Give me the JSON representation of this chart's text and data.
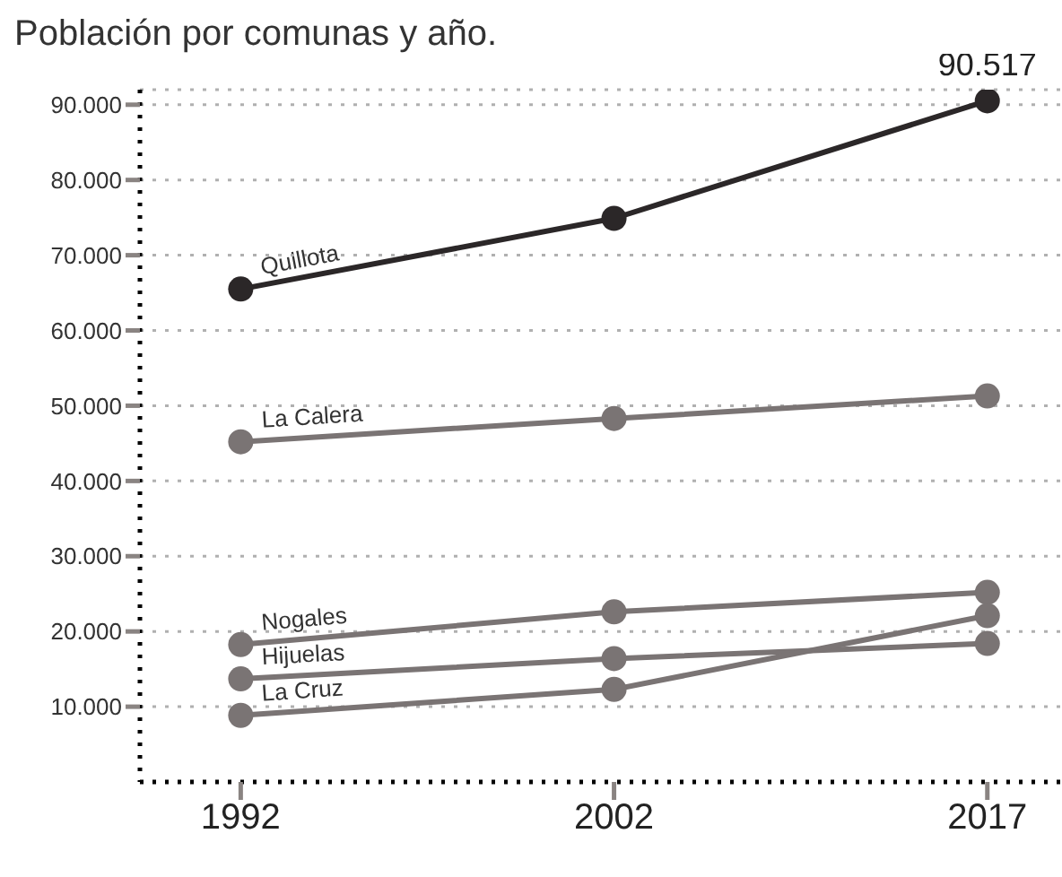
{
  "chart_data": {
    "type": "line",
    "title": "Población por comunas y año.",
    "categories": [
      "1992",
      "2002",
      "2017"
    ],
    "series": [
      {
        "name": "Quillota",
        "color": "#2b2728",
        "values": [
          65500,
          74900,
          90517
        ],
        "value_labels": [
          null,
          null,
          "90.517"
        ]
      },
      {
        "name": "La Calera",
        "color": "#7a7474",
        "values": [
          45200,
          48300,
          51300
        ]
      },
      {
        "name": "Nogales",
        "color": "#7a7474",
        "values": [
          18250,
          22600,
          25200
        ]
      },
      {
        "name": "Hijuelas",
        "color": "#7a7474",
        "values": [
          13700,
          16400,
          18400
        ]
      },
      {
        "name": "La Cruz",
        "color": "#7a7474",
        "values": [
          8850,
          12300,
          22100
        ]
      }
    ],
    "ylim": [
      0,
      92000
    ],
    "yticks": [
      {
        "value": 10000,
        "label": "10.000"
      },
      {
        "value": 20000,
        "label": "20.000"
      },
      {
        "value": 30000,
        "label": "30.000"
      },
      {
        "value": 40000,
        "label": "40.000"
      },
      {
        "value": 50000,
        "label": "50.000"
      },
      {
        "value": 60000,
        "label": "60.000"
      },
      {
        "value": 70000,
        "label": "70.000"
      },
      {
        "value": 80000,
        "label": "80.000"
      },
      {
        "value": 90000,
        "label": "90.000"
      }
    ],
    "grid": "y",
    "legend": false,
    "marker": "circle",
    "line_style": "solid"
  }
}
